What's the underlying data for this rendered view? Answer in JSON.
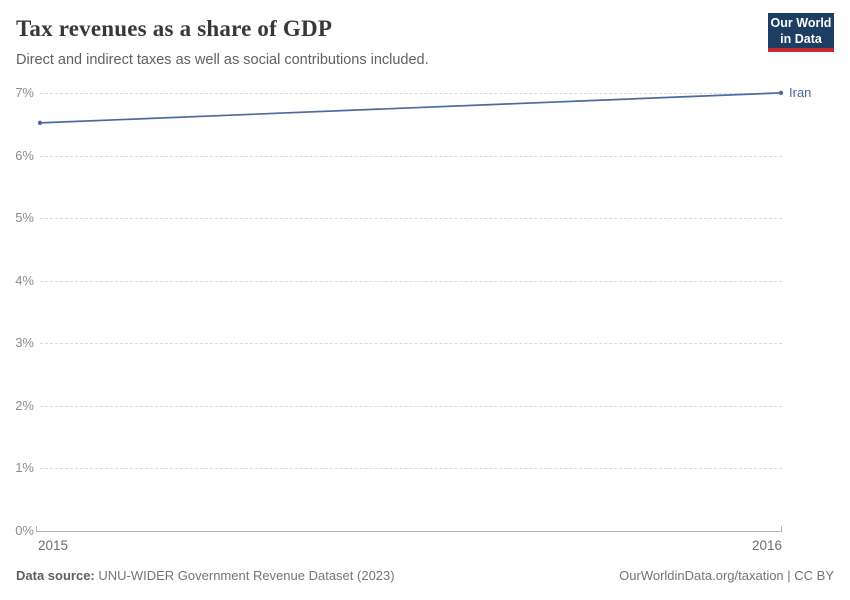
{
  "header": {
    "title": "Tax revenues as a share of GDP",
    "subtitle": "Direct and indirect taxes as well as social contributions included.",
    "logo": {
      "line1": "Our World",
      "line2": "in Data",
      "bg_color": "#1d3d63",
      "stripe_color": "#c62a33"
    }
  },
  "chart_data": {
    "type": "line",
    "title": "Tax revenues as a share of GDP",
    "x": [
      2015,
      2016
    ],
    "series": [
      {
        "name": "Iran",
        "values": [
          6.53,
          7.01
        ],
        "color": "#4c6a9c"
      }
    ],
    "xlabel": "",
    "ylabel": "",
    "ylim": [
      0,
      7
    ],
    "yticks": [
      "0%",
      "1%",
      "2%",
      "3%",
      "4%",
      "5%",
      "6%",
      "7%"
    ],
    "xticks": [
      "2015",
      "2016"
    ],
    "grid": "horizontal-dashed",
    "legend_position": "end-of-line-label"
  },
  "footer": {
    "source_label": "Data source:",
    "source_text": " UNU-WIDER Government Revenue Dataset (2023)",
    "attribution": "OurWorldinData.org/taxation | CC BY"
  }
}
